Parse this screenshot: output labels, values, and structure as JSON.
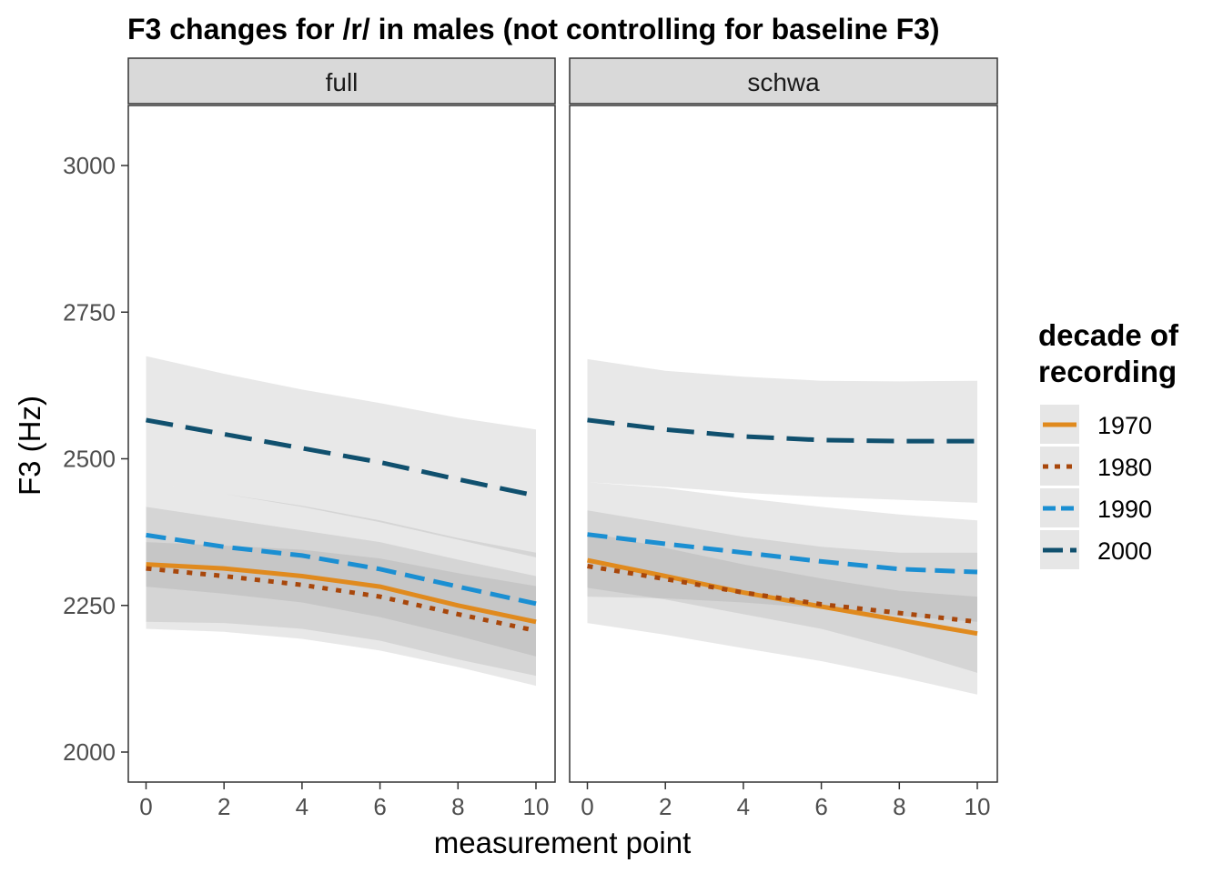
{
  "chart_data": {
    "type": "line",
    "title": "F3 changes for /r/ in males (not controlling for baseline F3)",
    "xlabel": "measurement point",
    "ylabel": "F3 (Hz)",
    "xlim": [
      -0.5,
      10.5
    ],
    "ylim": [
      1950,
      3100
    ],
    "x_ticks": [
      0,
      2,
      4,
      6,
      8,
      10
    ],
    "y_ticks": [
      2000,
      2250,
      2500,
      2750,
      3000
    ],
    "x_tick_labels": [
      "0",
      "2",
      "4",
      "6",
      "8",
      "10"
    ],
    "y_tick_labels": [
      "2000",
      "2250",
      "2500",
      "2750",
      "3000"
    ],
    "grid": false,
    "legend": {
      "title_lines": [
        "decade of",
        "recording"
      ],
      "position": "right"
    },
    "series_styles": [
      {
        "name": "1970",
        "color": "#e08a1e",
        "dash": "solid"
      },
      {
        "name": "1980",
        "color": "#a8470b",
        "dash": "dotted"
      },
      {
        "name": "1990",
        "color": "#1b8fd2",
        "dash": "dashed"
      },
      {
        "name": "2000",
        "color": "#10506e",
        "dash": "longdash"
      }
    ],
    "panels": [
      {
        "name": "full",
        "series": [
          {
            "name": "1970",
            "x": [
              0,
              2,
              4,
              6,
              8,
              10
            ],
            "y": [
              2320,
              2313,
              2300,
              2282,
              2250,
              2222
            ],
            "lower": [
              2282,
              2270,
              2255,
              2230,
              2198,
              2163
            ],
            "upper": [
              2358,
              2352,
              2345,
              2330,
              2305,
              2283
            ]
          },
          {
            "name": "1980",
            "x": [
              0,
              2,
              4,
              6,
              8,
              10
            ],
            "y": [
              2313,
              2300,
              2285,
              2265,
              2235,
              2207
            ],
            "lower": [
              2210,
              2205,
              2193,
              2173,
              2145,
              2113
            ],
            "upper": [
              2418,
              2398,
              2378,
              2358,
              2328,
              2300
            ]
          },
          {
            "name": "1990",
            "x": [
              0,
              2,
              4,
              6,
              8,
              10
            ],
            "y": [
              2370,
              2350,
              2335,
              2312,
              2282,
              2253
            ],
            "lower": [
              2222,
              2220,
              2210,
              2190,
              2158,
              2130
            ],
            "upper": [
              2460,
              2440,
              2420,
              2395,
              2365,
              2340
            ]
          },
          {
            "name": "2000",
            "x": [
              0,
              2,
              4,
              6,
              8,
              10
            ],
            "y": [
              2566,
              2542,
              2518,
              2494,
              2465,
              2437
            ],
            "lower": [
              2460,
              2440,
              2418,
              2392,
              2362,
              2332
            ],
            "upper": [
              2675,
              2645,
              2618,
              2595,
              2570,
              2550
            ]
          }
        ]
      },
      {
        "name": "schwa",
        "series": [
          {
            "name": "1970",
            "x": [
              0,
              2,
              4,
              6,
              8,
              10
            ],
            "y": [
              2327,
              2300,
              2272,
              2248,
              2225,
              2202
            ],
            "lower": [
              2280,
              2260,
              2235,
              2210,
              2175,
              2135
            ],
            "upper": [
              2375,
              2348,
              2320,
              2296,
              2275,
              2265
            ]
          },
          {
            "name": "1980",
            "x": [
              0,
              2,
              4,
              6,
              8,
              10
            ],
            "y": [
              2317,
              2295,
              2272,
              2252,
              2237,
              2222
            ],
            "lower": [
              2220,
              2200,
              2177,
              2155,
              2128,
              2098
            ],
            "upper": [
              2412,
              2390,
              2367,
              2350,
              2340,
              2340
            ]
          },
          {
            "name": "1990",
            "x": [
              0,
              2,
              4,
              6,
              8,
              10
            ],
            "y": [
              2371,
              2355,
              2340,
              2325,
              2312,
              2307
            ],
            "lower": [
              2265,
              2262,
              2255,
              2245,
              2232,
              2222
            ],
            "upper": [
              2460,
              2450,
              2433,
              2418,
              2405,
              2395
            ]
          },
          {
            "name": "2000",
            "x": [
              0,
              2,
              4,
              6,
              8,
              10
            ],
            "y": [
              2566,
              2550,
              2538,
              2532,
              2530,
              2530
            ],
            "lower": [
              2460,
              2452,
              2442,
              2435,
              2430,
              2425
            ],
            "upper": [
              2670,
              2650,
              2640,
              2633,
              2632,
              2633
            ]
          }
        ]
      }
    ]
  }
}
